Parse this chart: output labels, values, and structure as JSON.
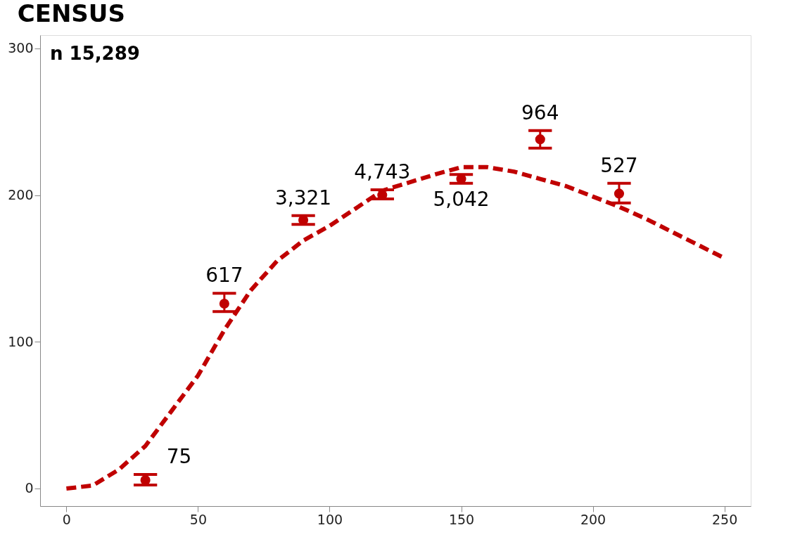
{
  "chart_data": {
    "type": "scatter",
    "title": "CENSUS",
    "annotations": [
      "n 15,289",
      "75",
      "617",
      "3,321",
      "4,743",
      "5,042",
      "964",
      "527"
    ],
    "series": [
      {
        "color": "#c00000",
        "x": [
          30,
          60,
          90,
          120,
          150,
          180,
          210
        ],
        "values": [
          5.7,
          126,
          183,
          200,
          211,
          238,
          201
        ],
        "errors": [
          [
            2.4,
            9.5
          ],
          [
            120.6,
            133
          ],
          [
            180,
            186
          ],
          [
            197.4,
            203.6
          ],
          [
            208,
            214
          ],
          [
            232,
            244
          ],
          [
            194.6,
            208
          ]
        ]
      },
      {
        "type": "line",
        "color": "#c00000",
        "line_style": "dashed",
        "marker": "none",
        "x": [
          0,
          10,
          20,
          30,
          40,
          50,
          60,
          70,
          80,
          90,
          100,
          120,
          140,
          150,
          160,
          170,
          180,
          190,
          200,
          210,
          220,
          230,
          240,
          250
        ],
        "values": [
          0,
          2,
          13,
          29,
          53,
          77,
          108,
          135,
          155,
          169,
          179,
          203,
          214,
          219,
          219,
          216,
          211,
          206,
          199,
          192,
          184,
          175,
          166,
          157
        ]
      }
    ],
    "xlim": [
      -10,
      260
    ],
    "ylim": [
      -12,
      309
    ],
    "xticks": [
      0,
      50,
      100,
      150,
      200,
      250
    ],
    "yticks": [
      0,
      100,
      200,
      300
    ],
    "marker": "circle",
    "grid": false
  }
}
